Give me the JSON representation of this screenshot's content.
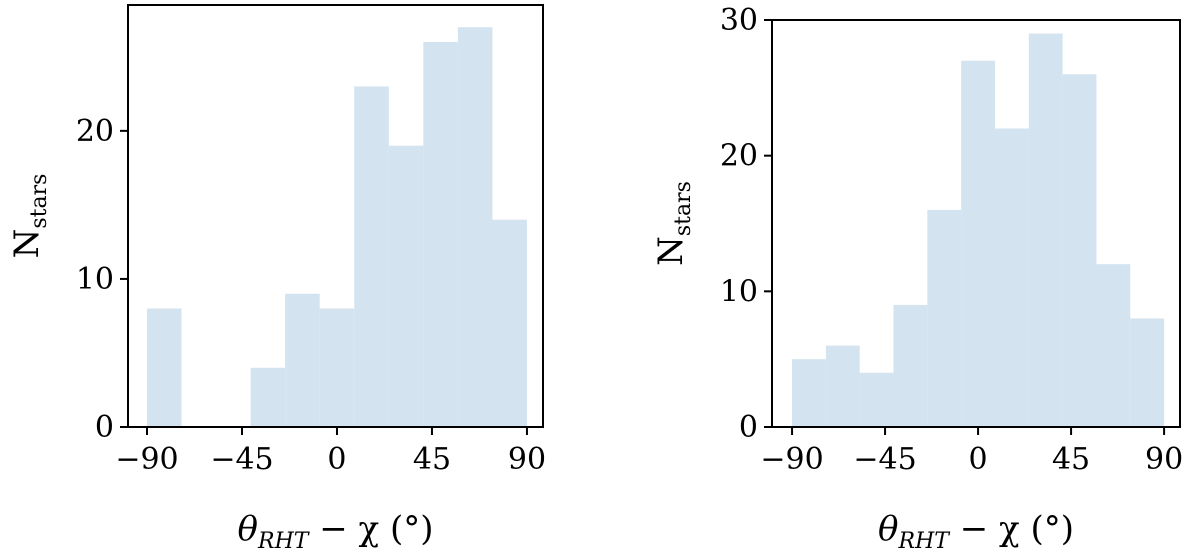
{
  "chart_data": [
    {
      "type": "histogram",
      "bins": [
        -90,
        -73.64,
        -57.27,
        -40.91,
        -24.55,
        -8.18,
        8.18,
        24.55,
        40.91,
        57.27,
        73.64,
        90
      ],
      "values": [
        8,
        0,
        0,
        4,
        9,
        8,
        23,
        19,
        26,
        27,
        14
      ],
      "color": "#d3e3ef",
      "xlim": [
        -99,
        97.6
      ],
      "ylim": [
        0,
        28.5
      ],
      "xticks": [
        {
          "value": -90,
          "label": "−90"
        },
        {
          "value": -45,
          "label": "−45"
        },
        0,
        45,
        90
      ],
      "yticks": [
        0,
        10,
        20
      ],
      "xlabel": [
        "θ",
        "RHT",
        " − χ (°)"
      ],
      "ylabel": [
        "N",
        "stars"
      ]
    },
    {
      "type": "histogram",
      "bins": [
        -90,
        -73.64,
        -57.27,
        -40.91,
        -24.55,
        -8.18,
        8.18,
        24.55,
        40.91,
        57.27,
        73.64,
        90
      ],
      "values": [
        5,
        6,
        4,
        9,
        16,
        27,
        22,
        29,
        26,
        12,
        8
      ],
      "color": "#d3e3ef",
      "xlim": [
        -99.7,
        97.7
      ],
      "ylim": [
        0,
        30
      ],
      "xticks": [
        {
          "value": -90,
          "label": "−90"
        },
        {
          "value": -45,
          "label": "−45"
        },
        0,
        45,
        90
      ],
      "yticks": [
        0,
        10,
        20,
        30
      ],
      "xlabel": [
        "θ",
        "RHT",
        " − χ (°)"
      ],
      "ylabel": [
        "N",
        "stars"
      ]
    }
  ]
}
